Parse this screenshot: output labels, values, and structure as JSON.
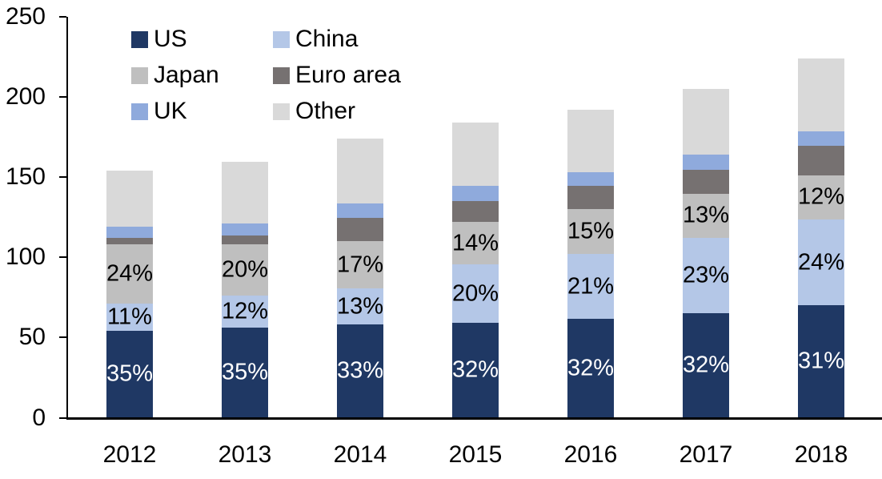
{
  "chart_data": {
    "type": "bar",
    "stacked": true,
    "title": "",
    "xlabel": "",
    "ylabel": "",
    "categories": [
      "2012",
      "2013",
      "2014",
      "2015",
      "2016",
      "2017",
      "2018"
    ],
    "series": [
      {
        "name": "US",
        "color": "#1f3864",
        "label_color": "#ffffff",
        "values": [
          54,
          56,
          58,
          59,
          61.5,
          65,
          70
        ],
        "labels": [
          "35%",
          "35%",
          "33%",
          "32%",
          "32%",
          "32%",
          "31%"
        ]
      },
      {
        "name": "China",
        "color": "#b4c7e7",
        "label_color": "#000000",
        "values": [
          17,
          20,
          22.5,
          36.5,
          40.5,
          47,
          53.5
        ],
        "labels": [
          "11%",
          "12%",
          "13%",
          "20%",
          "21%",
          "23%",
          "24%"
        ]
      },
      {
        "name": "Japan",
        "color": "#bfbfbf",
        "label_color": "#000000",
        "values": [
          37,
          32,
          29.5,
          26.5,
          28,
          27.5,
          27.5
        ],
        "labels": [
          "24%",
          "20%",
          "17%",
          "14%",
          "15%",
          "13%",
          "12%"
        ]
      },
      {
        "name": "Euro area",
        "color": "#767171",
        "label_color": "#000000",
        "values": [
          4,
          5.5,
          14.5,
          13,
          14.5,
          15,
          18.5
        ],
        "labels": [
          null,
          null,
          null,
          null,
          null,
          null,
          null
        ]
      },
      {
        "name": "UK",
        "color": "#8faadc",
        "label_color": "#000000",
        "values": [
          7,
          7.5,
          9,
          9.5,
          8.5,
          9.5,
          9
        ],
        "labels": [
          null,
          null,
          null,
          null,
          null,
          null,
          null
        ]
      },
      {
        "name": "Other",
        "color": "#d9d9d9",
        "label_color": "#000000",
        "values": [
          35,
          38.5,
          40.5,
          39.5,
          39,
          41,
          45.5
        ],
        "labels": [
          null,
          null,
          null,
          null,
          null,
          null,
          null
        ]
      }
    ],
    "totals": [
      154,
      160,
      174,
      184,
      192,
      205,
      224
    ],
    "ylim": [
      0,
      250
    ],
    "yticks": [
      0,
      50,
      100,
      150,
      200,
      250
    ],
    "grid": false,
    "legend_position": "top-left",
    "legend_columns": 2,
    "legend_order": [
      "US",
      "China",
      "Japan",
      "Euro area",
      "UK",
      "Other"
    ],
    "axis_color": "#000000",
    "background": "#ffffff"
  }
}
